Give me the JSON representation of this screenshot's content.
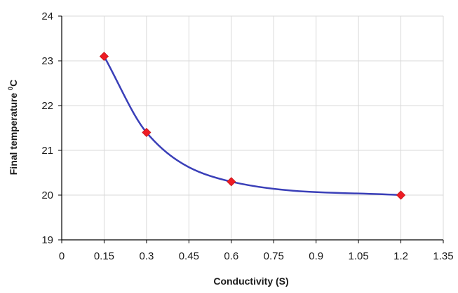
{
  "chart_data": {
    "type": "line",
    "title": "",
    "xlabel": "Conductivity (S)",
    "ylabel": "Final temperature °C",
    "ylabel_main": "Final temperature ",
    "ylabel_super": "0",
    "ylabel_unit": "C",
    "xlim": [
      0,
      1.35
    ],
    "ylim": [
      19,
      24
    ],
    "x_ticks": [
      "0",
      "0.15",
      "0.3",
      "0.45",
      "0.6",
      "0.75",
      "0.9",
      "1.05",
      "1.2",
      "1.35"
    ],
    "y_ticks": [
      "19",
      "20",
      "21",
      "22",
      "23",
      "24"
    ],
    "grid": true,
    "legend": "none",
    "series": [
      {
        "x": [
          0.15,
          0.3,
          0.6,
          1.2
        ],
        "y": [
          23.1,
          21.4,
          20.3,
          20.0
        ],
        "line_color": "#3a3fb8",
        "marker": "diamond",
        "marker_color": "#ee1c24"
      }
    ]
  }
}
